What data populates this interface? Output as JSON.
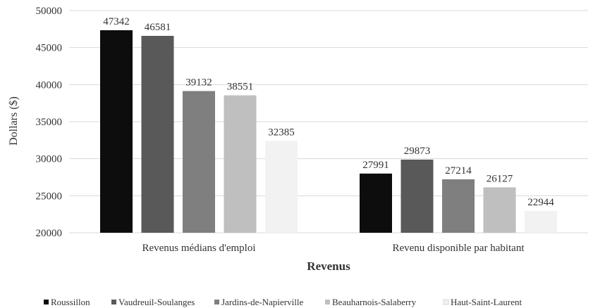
{
  "chart_data": {
    "type": "bar",
    "title": "",
    "xlabel": "Revenus",
    "ylabel": "Dollars ($)",
    "ylim": [
      20000,
      50000
    ],
    "ytick_step": 5000,
    "grid": true,
    "legend_position": "bottom",
    "categories": [
      "Revenus médians d'emploi",
      "Revenu disponible par habitant"
    ],
    "series": [
      {
        "name": "Roussillon",
        "color": "#0d0d0d",
        "values": [
          47342,
          27991
        ]
      },
      {
        "name": "Vaudreuil-Soulanges",
        "color": "#595959",
        "values": [
          46581,
          29873
        ]
      },
      {
        "name": "Jardins-de-Napierville",
        "color": "#7f7f7f",
        "values": [
          39132,
          27214
        ]
      },
      {
        "name": "Beauharnois-Salaberry",
        "color": "#bfbfbf",
        "values": [
          38551,
          26127
        ]
      },
      {
        "name": "Haut-Saint-Laurent",
        "color": "#f2f2f2",
        "values": [
          32385,
          22944
        ]
      }
    ]
  }
}
